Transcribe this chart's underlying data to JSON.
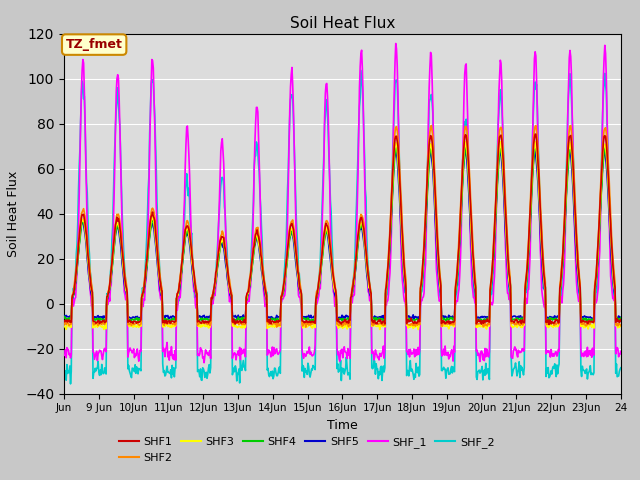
{
  "title": "Soil Heat Flux",
  "xlabel": "Time",
  "ylabel": "Soil Heat Flux",
  "ylim": [
    -40,
    120
  ],
  "yticks": [
    -40,
    -20,
    0,
    20,
    40,
    60,
    80,
    100,
    120
  ],
  "xlim": [
    8,
    24
  ],
  "xtick_labels": [
    "Jun",
    "9 Jun",
    "10Jun",
    "11Jun",
    "12Jun",
    "13Jun",
    "14Jun",
    "15Jun",
    "16Jun",
    "17Jun",
    "18Jun",
    "19Jun",
    "20Jun",
    "21Jun",
    "22Jun",
    "23Jun",
    "24"
  ],
  "xtick_positions": [
    8,
    9,
    10,
    11,
    12,
    13,
    14,
    15,
    16,
    17,
    18,
    19,
    20,
    21,
    22,
    23,
    24
  ],
  "series_colors": {
    "SHF1": "#cc0000",
    "SHF2": "#ff8800",
    "SHF3": "#ffff00",
    "SHF4": "#00cc00",
    "SHF5": "#0000cc",
    "SHF_1": "#ff00ff",
    "SHF_2": "#00cccc"
  },
  "annotation_text": "TZ_fmet",
  "annotation_bg": "#ffffcc",
  "annotation_border": "#cc8800",
  "annotation_text_color": "#990000",
  "fig_bg": "#c8c8c8",
  "plot_bg": "#dcdcdc",
  "grid_color": "#ffffff",
  "linewidth": 1.2
}
